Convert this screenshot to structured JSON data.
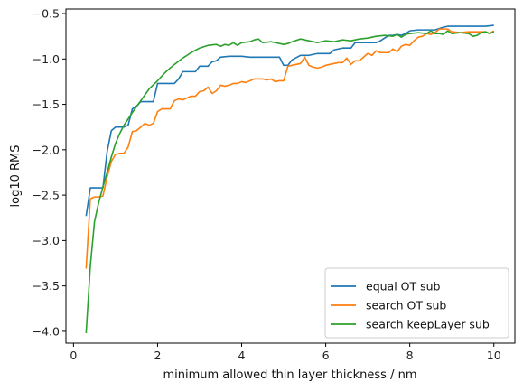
{
  "chart_data": {
    "type": "line",
    "title": "",
    "xlabel": "minimum allowed thin layer thickness / nm",
    "ylabel": "log10 RMS",
    "xlim": [
      -0.18,
      10.5
    ],
    "ylim": [
      -4.13,
      -0.45
    ],
    "xticks": [
      0,
      2,
      4,
      6,
      8,
      10
    ],
    "yticks": [
      -4.0,
      -3.5,
      -3.0,
      -2.5,
      -2.0,
      -1.5,
      -1.0,
      -0.5
    ],
    "xtick_labels": [
      "0",
      "2",
      "4",
      "6",
      "8",
      "10"
    ],
    "ytick_labels": [
      "−4.0",
      "−3.5",
      "−3.0",
      "−2.5",
      "−2.0",
      "−1.5",
      "−1.0",
      "−0.5"
    ],
    "grid": false,
    "legend_position": "lower-right",
    "series": [
      {
        "name": "equal OT sub",
        "color": "#1f77b4",
        "points": [
          [
            0.3,
            -2.73
          ],
          [
            0.4,
            -2.42
          ],
          [
            0.5,
            -2.42
          ],
          [
            0.6,
            -2.42
          ],
          [
            0.7,
            -2.42
          ],
          [
            0.8,
            -2.02
          ],
          [
            0.9,
            -1.79
          ],
          [
            1.0,
            -1.75
          ],
          [
            1.1,
            -1.75
          ],
          [
            1.2,
            -1.75
          ],
          [
            1.3,
            -1.73
          ],
          [
            1.4,
            -1.55
          ],
          [
            1.5,
            -1.52
          ],
          [
            1.6,
            -1.47
          ],
          [
            1.7,
            -1.47
          ],
          [
            1.8,
            -1.47
          ],
          [
            1.9,
            -1.47
          ],
          [
            2.0,
            -1.27
          ],
          [
            2.2,
            -1.27
          ],
          [
            2.4,
            -1.27
          ],
          [
            2.5,
            -1.22
          ],
          [
            2.6,
            -1.14
          ],
          [
            2.8,
            -1.14
          ],
          [
            2.9,
            -1.14
          ],
          [
            3.0,
            -1.08
          ],
          [
            3.2,
            -1.08
          ],
          [
            3.3,
            -1.03
          ],
          [
            3.4,
            -1.02
          ],
          [
            3.5,
            -0.98
          ],
          [
            3.7,
            -0.97
          ],
          [
            3.9,
            -0.97
          ],
          [
            4.0,
            -0.97
          ],
          [
            4.2,
            -0.98
          ],
          [
            4.4,
            -0.98
          ],
          [
            4.6,
            -0.98
          ],
          [
            4.8,
            -0.98
          ],
          [
            4.9,
            -0.98
          ],
          [
            5.0,
            -1.07
          ],
          [
            5.1,
            -1.07
          ],
          [
            5.2,
            -1.01
          ],
          [
            5.4,
            -0.96
          ],
          [
            5.6,
            -0.96
          ],
          [
            5.7,
            -0.95
          ],
          [
            5.8,
            -0.94
          ],
          [
            6.0,
            -0.94
          ],
          [
            6.1,
            -0.94
          ],
          [
            6.2,
            -0.9
          ],
          [
            6.4,
            -0.88
          ],
          [
            6.6,
            -0.88
          ],
          [
            6.7,
            -0.82
          ],
          [
            6.9,
            -0.82
          ],
          [
            7.0,
            -0.82
          ],
          [
            7.2,
            -0.82
          ],
          [
            7.3,
            -0.8
          ],
          [
            7.4,
            -0.77
          ],
          [
            7.5,
            -0.74
          ],
          [
            7.6,
            -0.74
          ],
          [
            7.7,
            -0.73
          ],
          [
            7.8,
            -0.74
          ],
          [
            7.9,
            -0.72
          ],
          [
            8.0,
            -0.69
          ],
          [
            8.2,
            -0.68
          ],
          [
            8.4,
            -0.68
          ],
          [
            8.6,
            -0.68
          ],
          [
            8.8,
            -0.65
          ],
          [
            8.9,
            -0.64
          ],
          [
            9.2,
            -0.64
          ],
          [
            9.5,
            -0.64
          ],
          [
            9.8,
            -0.64
          ],
          [
            10.0,
            -0.63
          ]
        ]
      },
      {
        "name": "search OT sub",
        "color": "#ff7f0e",
        "points": [
          [
            0.3,
            -3.31
          ],
          [
            0.4,
            -2.54
          ],
          [
            0.5,
            -2.52
          ],
          [
            0.6,
            -2.52
          ],
          [
            0.7,
            -2.51
          ],
          [
            0.8,
            -2.3
          ],
          [
            0.9,
            -2.13
          ],
          [
            1.0,
            -2.05
          ],
          [
            1.1,
            -2.04
          ],
          [
            1.2,
            -2.04
          ],
          [
            1.3,
            -1.97
          ],
          [
            1.4,
            -1.8
          ],
          [
            1.5,
            -1.79
          ],
          [
            1.6,
            -1.75
          ],
          [
            1.7,
            -1.71
          ],
          [
            1.8,
            -1.73
          ],
          [
            1.9,
            -1.71
          ],
          [
            2.0,
            -1.58
          ],
          [
            2.1,
            -1.55
          ],
          [
            2.2,
            -1.55
          ],
          [
            2.3,
            -1.55
          ],
          [
            2.4,
            -1.46
          ],
          [
            2.5,
            -1.44
          ],
          [
            2.6,
            -1.45
          ],
          [
            2.7,
            -1.43
          ],
          [
            2.8,
            -1.41
          ],
          [
            2.9,
            -1.41
          ],
          [
            3.0,
            -1.36
          ],
          [
            3.1,
            -1.35
          ],
          [
            3.2,
            -1.31
          ],
          [
            3.3,
            -1.38
          ],
          [
            3.4,
            -1.35
          ],
          [
            3.5,
            -1.29
          ],
          [
            3.6,
            -1.3
          ],
          [
            3.7,
            -1.29
          ],
          [
            3.8,
            -1.27
          ],
          [
            3.9,
            -1.27
          ],
          [
            4.0,
            -1.25
          ],
          [
            4.1,
            -1.26
          ],
          [
            4.2,
            -1.24
          ],
          [
            4.3,
            -1.22
          ],
          [
            4.4,
            -1.22
          ],
          [
            4.5,
            -1.22
          ],
          [
            4.6,
            -1.23
          ],
          [
            4.7,
            -1.22
          ],
          [
            4.8,
            -1.25
          ],
          [
            4.9,
            -1.24
          ],
          [
            5.0,
            -1.24
          ],
          [
            5.1,
            -1.08
          ],
          [
            5.2,
            -1.07
          ],
          [
            5.3,
            -1.06
          ],
          [
            5.4,
            -1.05
          ],
          [
            5.5,
            -0.98
          ],
          [
            5.6,
            -1.07
          ],
          [
            5.7,
            -1.09
          ],
          [
            5.8,
            -1.1
          ],
          [
            5.9,
            -1.09
          ],
          [
            6.0,
            -1.07
          ],
          [
            6.2,
            -1.05
          ],
          [
            6.3,
            -1.04
          ],
          [
            6.4,
            -1.04
          ],
          [
            6.5,
            -0.99
          ],
          [
            6.6,
            -1.06
          ],
          [
            6.7,
            -1.02
          ],
          [
            6.8,
            -1.02
          ],
          [
            6.9,
            -0.98
          ],
          [
            7.0,
            -0.94
          ],
          [
            7.1,
            -0.96
          ],
          [
            7.2,
            -0.91
          ],
          [
            7.3,
            -0.93
          ],
          [
            7.4,
            -0.93
          ],
          [
            7.5,
            -0.93
          ],
          [
            7.6,
            -0.89
          ],
          [
            7.7,
            -0.92
          ],
          [
            7.8,
            -0.86
          ],
          [
            7.9,
            -0.84
          ],
          [
            8.0,
            -0.85
          ],
          [
            8.1,
            -0.8
          ],
          [
            8.2,
            -0.76
          ],
          [
            8.3,
            -0.75
          ],
          [
            8.4,
            -0.72
          ],
          [
            8.5,
            -0.73
          ],
          [
            8.6,
            -0.71
          ],
          [
            8.7,
            -0.67
          ],
          [
            8.8,
            -0.67
          ],
          [
            8.9,
            -0.67
          ],
          [
            9.0,
            -0.7
          ],
          [
            9.2,
            -0.71
          ],
          [
            9.4,
            -0.7
          ],
          [
            9.6,
            -0.7
          ],
          [
            9.8,
            -0.7
          ],
          [
            9.9,
            -0.72
          ],
          [
            10.0,
            -0.69
          ]
        ]
      },
      {
        "name": "search keepLayer sub",
        "color": "#2ca02c",
        "points": [
          [
            0.3,
            -4.02
          ],
          [
            0.4,
            -3.28
          ],
          [
            0.5,
            -2.79
          ],
          [
            0.6,
            -2.58
          ],
          [
            0.7,
            -2.41
          ],
          [
            0.8,
            -2.25
          ],
          [
            0.9,
            -2.08
          ],
          [
            1.0,
            -1.93
          ],
          [
            1.1,
            -1.82
          ],
          [
            1.2,
            -1.73
          ],
          [
            1.4,
            -1.59
          ],
          [
            1.6,
            -1.46
          ],
          [
            1.8,
            -1.33
          ],
          [
            2.0,
            -1.24
          ],
          [
            2.2,
            -1.14
          ],
          [
            2.4,
            -1.06
          ],
          [
            2.6,
            -0.99
          ],
          [
            2.8,
            -0.93
          ],
          [
            3.0,
            -0.88
          ],
          [
            3.2,
            -0.85
          ],
          [
            3.4,
            -0.84
          ],
          [
            3.5,
            -0.86
          ],
          [
            3.6,
            -0.84
          ],
          [
            3.7,
            -0.85
          ],
          [
            3.8,
            -0.82
          ],
          [
            3.9,
            -0.85
          ],
          [
            4.0,
            -0.82
          ],
          [
            4.2,
            -0.81
          ],
          [
            4.3,
            -0.79
          ],
          [
            4.4,
            -0.78
          ],
          [
            4.5,
            -0.82
          ],
          [
            4.7,
            -0.81
          ],
          [
            4.9,
            -0.83
          ],
          [
            5.0,
            -0.84
          ],
          [
            5.1,
            -0.83
          ],
          [
            5.2,
            -0.81
          ],
          [
            5.4,
            -0.78
          ],
          [
            5.6,
            -0.8
          ],
          [
            5.8,
            -0.82
          ],
          [
            6.0,
            -0.8
          ],
          [
            6.2,
            -0.81
          ],
          [
            6.4,
            -0.79
          ],
          [
            6.6,
            -0.8
          ],
          [
            6.8,
            -0.78
          ],
          [
            7.0,
            -0.77
          ],
          [
            7.2,
            -0.75
          ],
          [
            7.4,
            -0.74
          ],
          [
            7.6,
            -0.75
          ],
          [
            7.7,
            -0.73
          ],
          [
            7.8,
            -0.76
          ],
          [
            7.9,
            -0.73
          ],
          [
            8.0,
            -0.72
          ],
          [
            8.2,
            -0.71
          ],
          [
            8.4,
            -0.72
          ],
          [
            8.5,
            -0.69
          ],
          [
            8.6,
            -0.72
          ],
          [
            8.7,
            -0.72
          ],
          [
            8.8,
            -0.73
          ],
          [
            8.9,
            -0.69
          ],
          [
            9.0,
            -0.72
          ],
          [
            9.2,
            -0.71
          ],
          [
            9.4,
            -0.72
          ],
          [
            9.5,
            -0.75
          ],
          [
            9.6,
            -0.74
          ],
          [
            9.7,
            -0.71
          ],
          [
            9.8,
            -0.7
          ],
          [
            9.9,
            -0.72
          ],
          [
            10.0,
            -0.7
          ]
        ]
      }
    ]
  }
}
